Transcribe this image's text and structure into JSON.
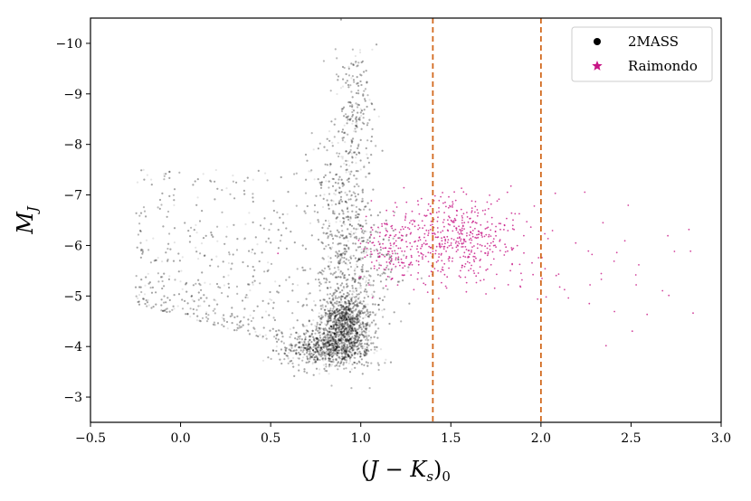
{
  "chart_data": {
    "type": "scatter",
    "xlabel": "(J − K_s)_0",
    "ylabel": "M_J",
    "xlim": [
      -0.5,
      3.0
    ],
    "ylim": [
      -2.5,
      -10.5
    ],
    "y_inverted": true,
    "x_ticks": [
      -0.5,
      0.0,
      0.5,
      1.0,
      1.5,
      2.0,
      2.5,
      3.0
    ],
    "x_tick_labels": [
      "−0.5",
      "0.0",
      "0.5",
      "1.0",
      "1.5",
      "2.0",
      "2.5",
      "3.0"
    ],
    "y_ticks": [
      -3,
      -4,
      -5,
      -6,
      -7,
      -8,
      -9,
      -10
    ],
    "y_tick_labels": [
      "−3",
      "−4",
      "−5",
      "−6",
      "−7",
      "−8",
      "−9",
      "−10"
    ],
    "vlines": [
      {
        "x": 1.4,
        "color": "#d2691e",
        "style": "dashed"
      },
      {
        "x": 2.0,
        "color": "#d2691e",
        "style": "dashed"
      }
    ],
    "legend": {
      "placement": "top-right",
      "entries": [
        {
          "label": "2MASS",
          "marker": "circle",
          "color": "#000000"
        },
        {
          "label": "Raimondo",
          "marker": "star",
          "color": "#c71585"
        }
      ]
    },
    "series": [
      {
        "name": "2MASS",
        "color": "#000000",
        "distributions": [
          {
            "kind": "blob",
            "center": [
              0.91,
              -4.5
            ],
            "spread": [
              0.07,
              0.28
            ],
            "weight": 0.28
          },
          {
            "kind": "blob",
            "center": [
              0.82,
              -3.95
            ],
            "spread": [
              0.12,
              0.18
            ],
            "weight": 0.22
          },
          {
            "kind": "blob",
            "center": [
              0.9,
              -6.2
            ],
            "spread": [
              0.08,
              1.25
            ],
            "weight": 0.16
          },
          {
            "kind": "blob",
            "center": [
              0.97,
              -8.6
            ],
            "spread": [
              0.05,
              0.7
            ],
            "weight": 0.06
          },
          {
            "kind": "blob",
            "center": [
              1.08,
              -5.6
            ],
            "spread": [
              0.1,
              0.5
            ],
            "weight": 0.06
          },
          {
            "kind": "wedge",
            "x_range": [
              -0.25,
              1.05
            ],
            "lower_edge": [
              [
                -0.25,
                -4.85
              ],
              [
                1.05,
                -3.6
              ]
            ],
            "y_top": -7.5,
            "weight": 0.22
          }
        ]
      },
      {
        "name": "Raimondo",
        "color": "#c71585",
        "distributions": [
          {
            "kind": "blob",
            "center": [
              1.5,
              -6.15
            ],
            "spread": [
              0.2,
              0.4
            ],
            "weight": 0.78
          },
          {
            "kind": "blob",
            "center": [
              1.15,
              -5.8
            ],
            "spread": [
              0.07,
              0.3
            ],
            "weight": 0.14
          },
          {
            "kind": "blob",
            "center": [
              2.3,
              -5.4
            ],
            "spread": [
              0.35,
              0.6
            ],
            "weight": 0.08
          }
        ]
      }
    ]
  }
}
